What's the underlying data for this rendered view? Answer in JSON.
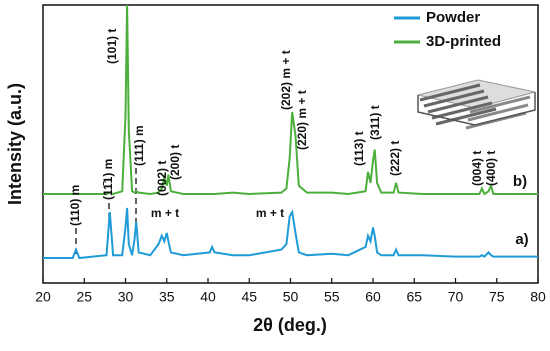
{
  "chart_data": {
    "type": "line",
    "xlabel": "2θ (deg.)",
    "ylabel": "Intensity (a.u.)",
    "xlim": [
      20,
      80
    ],
    "xticks": [
      20,
      25,
      30,
      35,
      40,
      45,
      50,
      55,
      60,
      65,
      70,
      75,
      80
    ],
    "ylim": [
      0,
      100
    ],
    "legend": "top-right",
    "x": [
      20,
      22,
      23.6,
      24,
      24.4,
      26,
      27.7,
      28.1,
      28.5,
      29.6,
      30.0,
      30.2,
      30.4,
      30.8,
      31.1,
      31.3,
      31.6,
      33,
      34.0,
      34.4,
      34.7,
      35.0,
      35.2,
      35.5,
      37,
      40.2,
      40.5,
      40.8,
      43,
      45,
      48.9,
      49.5,
      49.9,
      50.2,
      50.6,
      51.0,
      52,
      55,
      57,
      59.1,
      59.4,
      59.7,
      60.0,
      60.2,
      60.5,
      61,
      62.5,
      62.8,
      63.1,
      66,
      70,
      72.9,
      73.2,
      73.5,
      74.0,
      74.3,
      74.6,
      77,
      80
    ],
    "series": [
      {
        "name": "Powder",
        "color": "#1f9bd7",
        "values": [
          9,
          9,
          9,
          12,
          9,
          9.5,
          10,
          25.5,
          10,
          10,
          20,
          27,
          14,
          10,
          16,
          22,
          11,
          10,
          14,
          17,
          15,
          18,
          15,
          11,
          10,
          11,
          13,
          11,
          10,
          10,
          12,
          14,
          24,
          25.5,
          18,
          11,
          10,
          10.5,
          10,
          13,
          17,
          15,
          20,
          17,
          11,
          10,
          10,
          12,
          10,
          10,
          9.5,
          9.5,
          10,
          9.5,
          11,
          10,
          9.5,
          9.5,
          9.5
        ]
      },
      {
        "name": "3D-printed",
        "color": "#4caf3c",
        "values": [
          32,
          32,
          32,
          32,
          32,
          32,
          32,
          32.5,
          32,
          33,
          60,
          100,
          55,
          33,
          32.5,
          33,
          32.5,
          32,
          32.5,
          34,
          38,
          35,
          39,
          33,
          32,
          32,
          32,
          32,
          32.5,
          32,
          32.5,
          34,
          45,
          61.5,
          53,
          35,
          32.5,
          32.5,
          32,
          33,
          40,
          36,
          44,
          48,
          36,
          32.5,
          32.5,
          36,
          32.5,
          32,
          32,
          32,
          34,
          32,
          33,
          35,
          32,
          32,
          32
        ]
      }
    ],
    "annotations": [
      "(110) m",
      "(11̄1) m",
      "(101) t",
      "(111) m",
      "(002) t",
      "(200) t",
      "m + t",
      "m + t",
      "(202) m + t",
      "(220) m + t",
      "(113) t",
      "(311) t",
      "(222) t",
      "(004) t",
      "(400) t",
      "a)",
      "b)"
    ]
  }
}
